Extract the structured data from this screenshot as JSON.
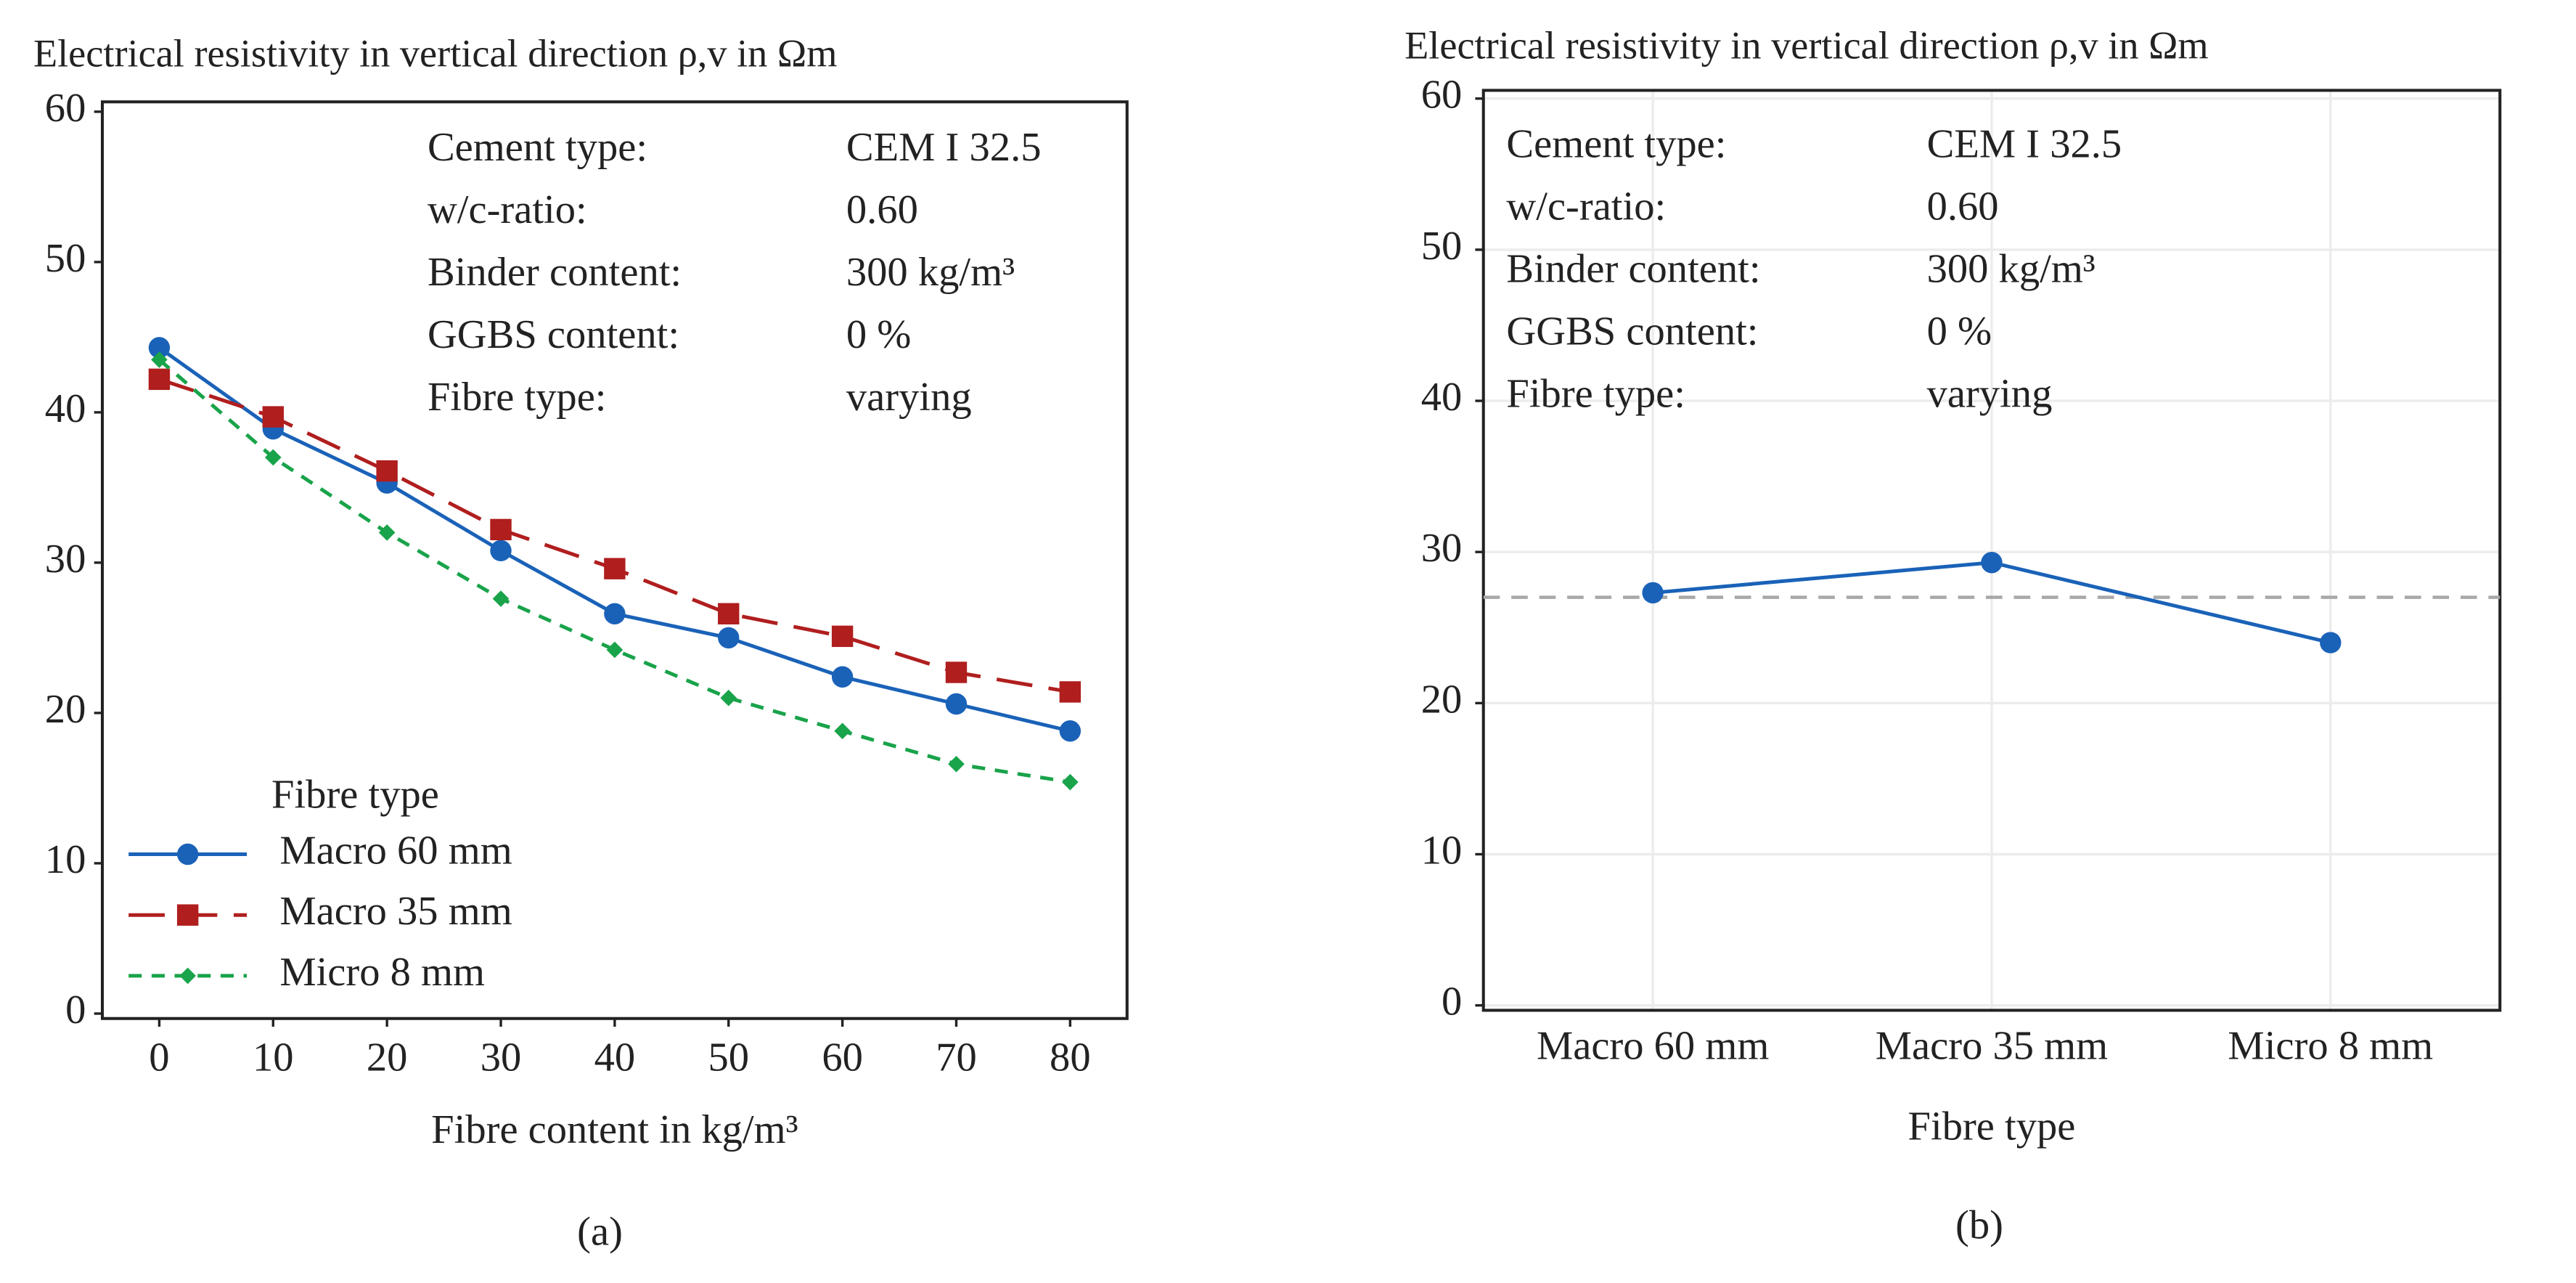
{
  "chart_data": [
    {
      "type": "line",
      "title": "Electrical resistivity in vertical direction ρ,v in Ωm",
      "x_label": "Fibre content in kg/m³",
      "panel_label": "(a)",
      "x": [
        0,
        10,
        20,
        30,
        40,
        50,
        60,
        70,
        80
      ],
      "xlim": [
        -5,
        85
      ],
      "xticks": [
        0,
        10,
        20,
        30,
        40,
        50,
        60,
        70,
        80
      ],
      "ylim": [
        0,
        60
      ],
      "yticks": [
        0,
        10,
        20,
        30,
        40,
        50,
        60
      ],
      "grid": false,
      "legend_title": "Fibre type",
      "legend": "lower left",
      "info": [
        {
          "label": "Cement type:",
          "value": "CEM I 32.5"
        },
        {
          "label": "w/c-ratio:",
          "value": "0.60"
        },
        {
          "label": "Binder content:",
          "value": "300 kg/m³"
        },
        {
          "label": "GGBS content:",
          "value": "0 %"
        },
        {
          "label": "Fibre type:",
          "value": "varying"
        }
      ],
      "series": [
        {
          "name": "Macro 60 mm",
          "color": "#1a62b8",
          "marker": "circle",
          "dash": "none",
          "values": [
            44.3,
            38.9,
            35.3,
            30.8,
            26.6,
            25.0,
            22.4,
            20.6,
            18.8
          ]
        },
        {
          "name": "Macro 35 mm",
          "color": "#b01e1e",
          "marker": "square",
          "dash": "22 10",
          "values": [
            42.2,
            39.7,
            36.1,
            32.2,
            29.6,
            26.6,
            25.1,
            22.7,
            21.4
          ]
        },
        {
          "name": "Micro 8 mm",
          "color": "#19a34a",
          "marker": "diamond",
          "dash": "8 6",
          "values": [
            43.5,
            37.0,
            32.0,
            27.6,
            24.2,
            21.0,
            18.8,
            16.6,
            15.4
          ]
        }
      ]
    },
    {
      "type": "line",
      "title": "Electrical resistivity in vertical direction ρ,v in Ωm",
      "x_label": "Fibre type",
      "panel_label": "(b)",
      "categories": [
        "Macro 60 mm",
        "Macro 35 mm",
        "Micro 8 mm"
      ],
      "ylim": [
        0,
        60
      ],
      "yticks": [
        0,
        10,
        20,
        30,
        40,
        50,
        60
      ],
      "grid": true,
      "reference_line": 27,
      "info": [
        {
          "label": "Cement type:",
          "value": "CEM I 32.5"
        },
        {
          "label": "w/c-ratio:",
          "value": "0.60"
        },
        {
          "label": "Binder content:",
          "value": "300 kg/m³"
        },
        {
          "label": "GGBS content:",
          "value": "0 %"
        },
        {
          "label": "Fibre type:",
          "value": "varying"
        }
      ],
      "series": [
        {
          "color": "#1a62b8",
          "marker": "circle",
          "dash": "none",
          "values": [
            27.3,
            29.3,
            24.0
          ]
        }
      ]
    }
  ]
}
